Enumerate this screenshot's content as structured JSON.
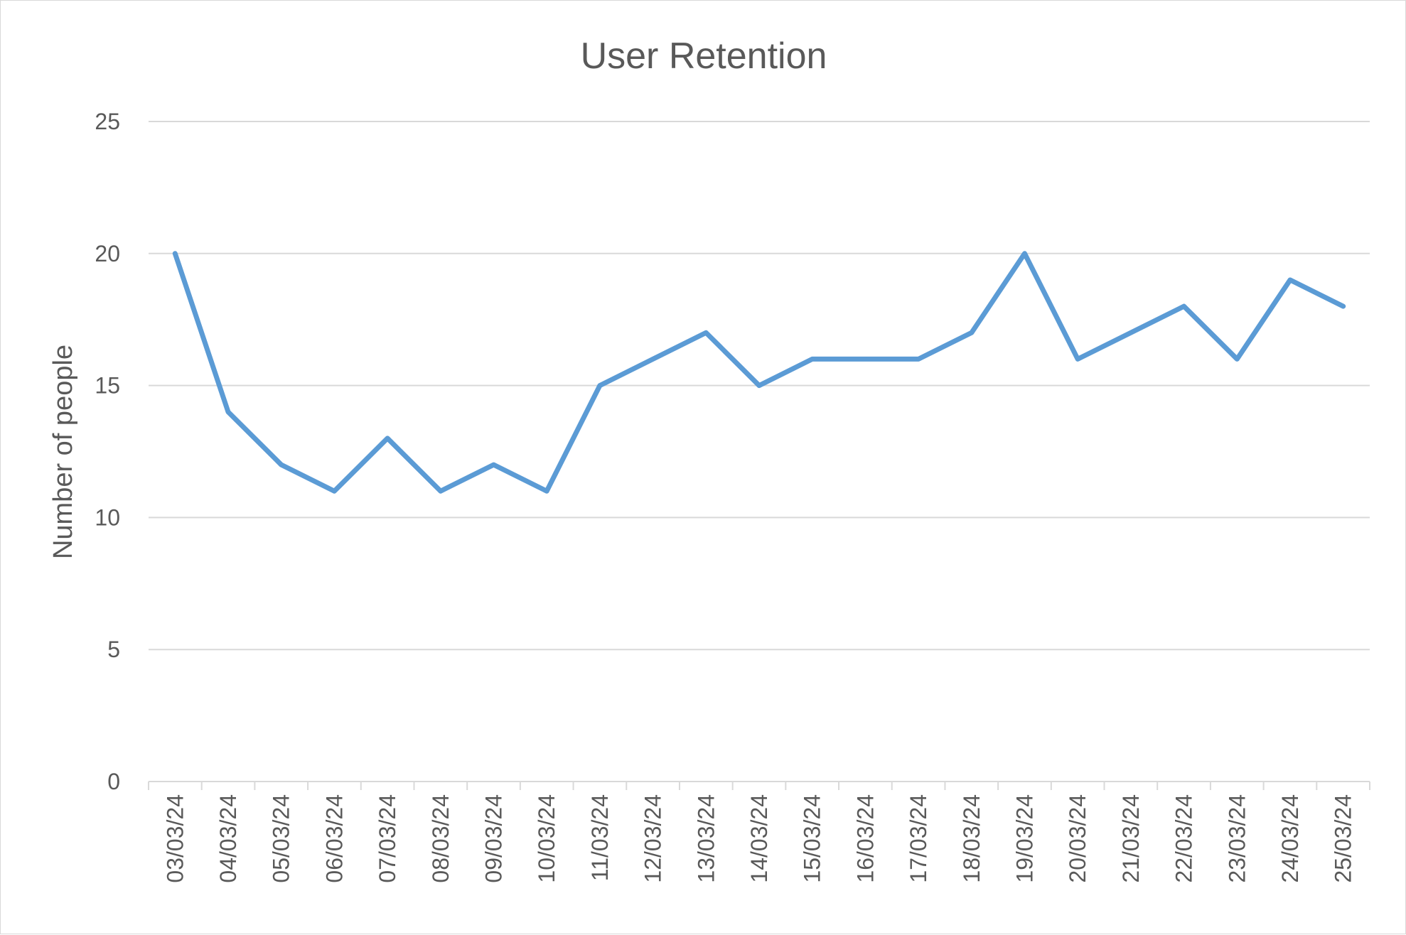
{
  "chart_data": {
    "type": "line",
    "title": "User Retention",
    "xlabel": "",
    "ylabel": "Number of people",
    "ylim": [
      0,
      25
    ],
    "yticks": [
      0,
      5,
      10,
      15,
      20,
      25
    ],
    "grid": true,
    "legend": "none",
    "categories": [
      "03/03/24",
      "04/03/24",
      "05/03/24",
      "06/03/24",
      "07/03/24",
      "08/03/24",
      "09/03/24",
      "10/03/24",
      "11/03/24",
      "12/03/24",
      "13/03/24",
      "14/03/24",
      "15/03/24",
      "16/03/24",
      "17/03/24",
      "18/03/24",
      "19/03/24",
      "20/03/24",
      "21/03/24",
      "22/03/24",
      "23/03/24",
      "24/03/24",
      "25/03/24"
    ],
    "series": [
      {
        "values": [
          20,
          14,
          12,
          11,
          13,
          11,
          12,
          11,
          15,
          16,
          17,
          15,
          16,
          16,
          16,
          17,
          20,
          16,
          17,
          18,
          16,
          19,
          18
        ],
        "color": "#5b9bd5"
      }
    ]
  }
}
